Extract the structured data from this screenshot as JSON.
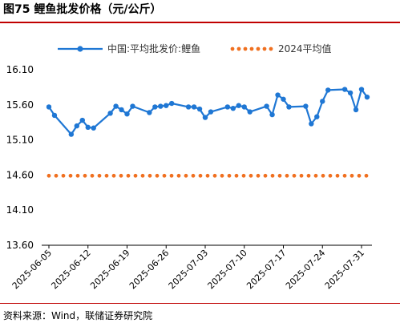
{
  "header": {
    "title": "图75 鲤鱼批发价格（元/公斤）"
  },
  "footer": {
    "source": "资料来源：Wind，联储证券研究院"
  },
  "colors": {
    "line": "#1f77d4",
    "avg": "#f07020",
    "rule": "#c00000"
  },
  "chart_data": {
    "type": "line",
    "title": "",
    "xlabel": "",
    "ylabel": "",
    "ylim": [
      13.6,
      16.1
    ],
    "yticks": [
      "16.10",
      "15.60",
      "15.10",
      "14.60",
      "14.10",
      "13.60"
    ],
    "yticks_values": [
      16.1,
      15.6,
      15.1,
      14.6,
      14.1,
      13.6
    ],
    "xlim": [
      "2025-06-05",
      "2025-08-01"
    ],
    "xticks": [
      "2025-06-05",
      "2025-06-12",
      "2025-06-19",
      "2025-06-26",
      "2025-07-03",
      "2025-07-10",
      "2025-07-17",
      "2025-07-24",
      "2025-07-31"
    ],
    "legend_position": "top",
    "grid": false,
    "series": [
      {
        "name": "中国:平均批发价:鲤鱼",
        "style": "line-markers",
        "x": [
          "2025-06-05",
          "2025-06-06",
          "2025-06-09",
          "2025-06-10",
          "2025-06-11",
          "2025-06-12",
          "2025-06-13",
          "2025-06-16",
          "2025-06-17",
          "2025-06-18",
          "2025-06-19",
          "2025-06-20",
          "2025-06-23",
          "2025-06-24",
          "2025-06-25",
          "2025-06-26",
          "2025-06-27",
          "2025-06-30",
          "2025-07-01",
          "2025-07-02",
          "2025-07-03",
          "2025-07-04",
          "2025-07-07",
          "2025-07-08",
          "2025-07-09",
          "2025-07-10",
          "2025-07-11",
          "2025-07-14",
          "2025-07-15",
          "2025-07-16",
          "2025-07-17",
          "2025-07-18",
          "2025-07-21",
          "2025-07-22",
          "2025-07-23",
          "2025-07-24",
          "2025-07-25",
          "2025-07-28",
          "2025-07-29",
          "2025-07-30",
          "2025-07-31",
          "2025-08-01"
        ],
        "values": [
          15.57,
          15.45,
          15.18,
          15.3,
          15.38,
          15.28,
          15.27,
          15.48,
          15.58,
          15.53,
          15.47,
          15.58,
          15.49,
          15.57,
          15.58,
          15.59,
          15.62,
          15.57,
          15.57,
          15.54,
          15.42,
          15.5,
          15.57,
          15.55,
          15.59,
          15.57,
          15.5,
          15.58,
          15.46,
          15.74,
          15.68,
          15.57,
          15.58,
          15.33,
          15.43,
          15.65,
          15.81,
          15.82,
          15.77,
          15.53,
          15.82,
          15.71
        ]
      },
      {
        "name": "2024平均值",
        "style": "dotted",
        "value": 14.59
      }
    ]
  }
}
